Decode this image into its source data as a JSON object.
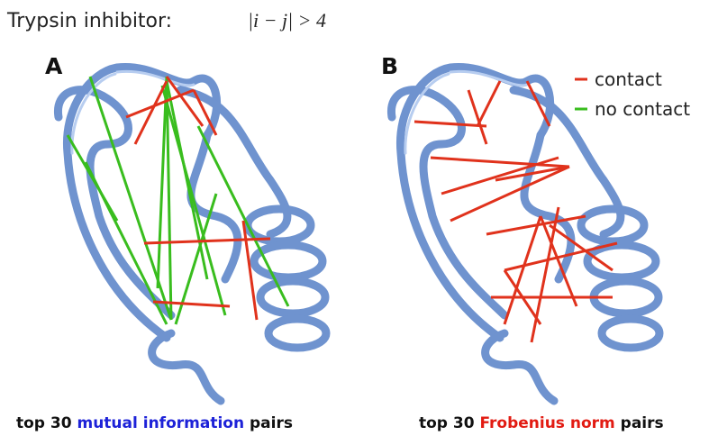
{
  "header": {
    "title": "Trypsin inhibitor:",
    "condition": "|i − j| > 4"
  },
  "panels": [
    {
      "label": "A",
      "caption": {
        "prefix": "top 30",
        "method": "mutual information",
        "suffix": "pairs"
      }
    },
    {
      "label": "B",
      "caption": {
        "prefix": "top 30",
        "method": "Frobenius norm",
        "suffix": "pairs"
      }
    }
  ],
  "legend": [
    {
      "label": "contact"
    },
    {
      "label": "no contact"
    }
  ]
}
